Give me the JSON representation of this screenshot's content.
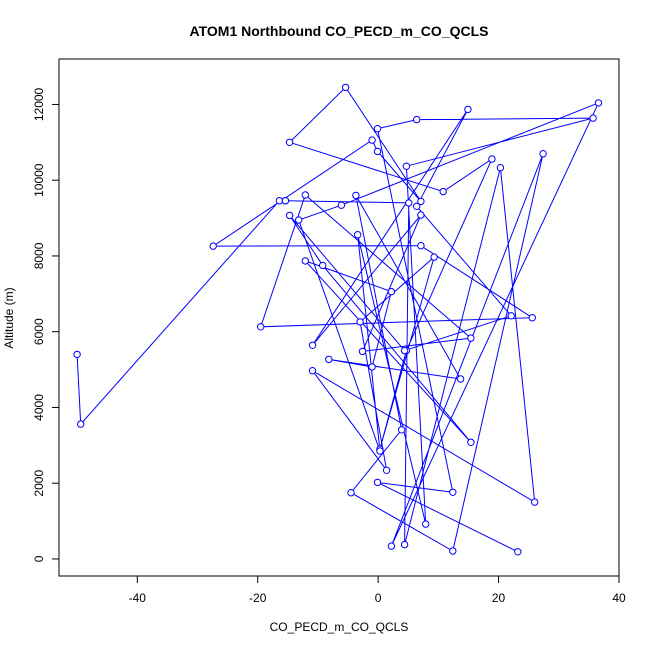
{
  "chart_data": {
    "type": "scatter",
    "title": "ATOM1 Northbound CO_PECD_m_CO_QCLS",
    "xlabel": "CO_PECD_m_CO_QCLS",
    "ylabel": "Altitude (m)",
    "xlim": [
      -53,
      40
    ],
    "ylim": [
      -450,
      13200
    ],
    "xticks": [
      -40,
      -20,
      0,
      20,
      40
    ],
    "yticks": [
      0,
      2000,
      4000,
      6000,
      8000,
      10000,
      12000
    ],
    "grid": false,
    "legend": "none",
    "marker": "open-circle",
    "connected": true,
    "color": "#0000ff",
    "series": [
      {
        "x": [
          -50,
          -49.4,
          -16.4,
          -15.4,
          -15.4,
          5.1,
          4.4,
          20.3,
          26.0,
          -10.9,
          1.4,
          -3.0,
          9.3,
          0.3,
          4.7,
          18.9,
          10.8,
          -14.7,
          -5.4,
          7.1,
          -0.1,
          -1.0,
          -27.4,
          7.1,
          25.6,
          -19.5,
          -12.1,
          15.4,
          -2.6,
          7.1,
          -10.9,
          14.9,
          6.4,
          22.1,
          4.4,
          -14.7,
          -9.2,
          15.4,
          -12.1,
          2.2,
          -1.0,
          -8.2,
          13.7,
          -3.7,
          3.9,
          -4.5,
          12.4,
          27.4,
          2.2,
          36.6,
          -6.1,
          -13.2,
          0.3,
          -3.4,
          7.9,
          4.7,
          35.7,
          6.4,
          -0.1,
          12.4,
          -0.1,
          23.2
        ],
        "y": [
          5400,
          3560,
          9460,
          9460,
          9460,
          9400,
          380,
          10330,
          1500,
          4970,
          2340,
          6260,
          7970,
          2900,
          5500,
          10560,
          9700,
          11000,
          12450,
          9440,
          10760,
          11060,
          8260,
          8270,
          6370,
          6130,
          9610,
          5830,
          5480,
          9080,
          5640,
          11870,
          9310,
          6420,
          5500,
          9070,
          7750,
          3080,
          7870,
          7060,
          5070,
          5270,
          4750,
          9600,
          3410,
          1750,
          210,
          10700,
          340,
          12040,
          9340,
          8950,
          2850,
          8560,
          920,
          10370,
          11640,
          11600,
          11360,
          1760,
          2020,
          190
        ]
      }
    ]
  }
}
